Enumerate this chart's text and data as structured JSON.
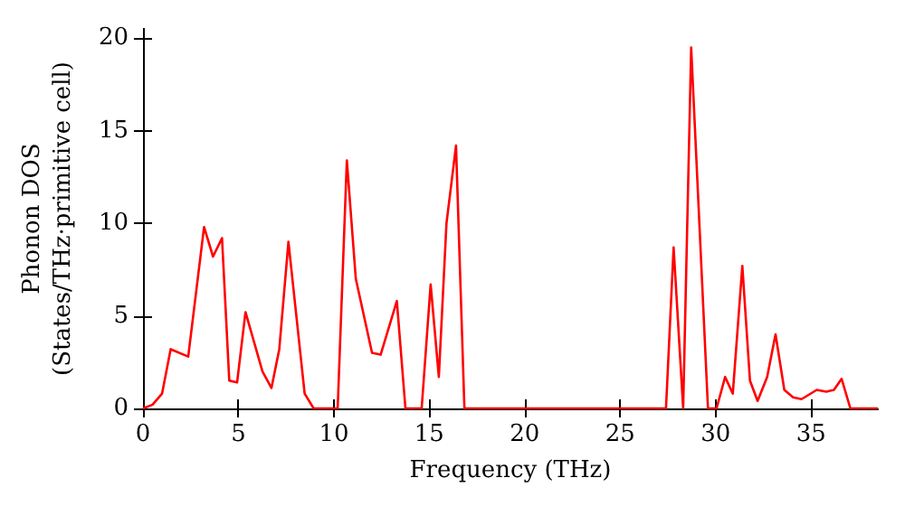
{
  "chart_data": {
    "type": "line",
    "xlabel": "Frequency (THz)",
    "ylabel": "Phonon DOS\n(States/THz·primitive cell)",
    "xlim": [
      0,
      38.5
    ],
    "xticks": [
      0,
      5,
      10,
      15,
      20,
      25,
      30,
      35
    ],
    "ylim": [
      0,
      20.5
    ],
    "yticks": [
      0,
      5,
      10,
      15,
      20
    ],
    "grid": false,
    "marker": "none",
    "series": [
      {
        "color": "#ff0000",
        "x": [
          0,
          0.5,
          1.0,
          1.45,
          2.37,
          3.2,
          3.67,
          4.14,
          4.52,
          4.93,
          5.37,
          6.26,
          6.73,
          7.14,
          7.62,
          8.47,
          8.94,
          10.2,
          10.68,
          11.15,
          12.0,
          12.45,
          13.3,
          13.75,
          14.6,
          15.07,
          15.5,
          15.9,
          16.4,
          16.84,
          27.4,
          27.8,
          28.3,
          28.72,
          29.6,
          30.05,
          30.5,
          30.9,
          31.4,
          31.8,
          32.2,
          32.7,
          33.14,
          33.6,
          34.06,
          34.5,
          35.3,
          35.8,
          36.2,
          36.6,
          37.06,
          38.5
        ],
        "values": [
          0,
          0.2,
          0.8,
          3.2,
          2.8,
          9.8,
          8.2,
          9.2,
          1.5,
          1.4,
          5.2,
          2.0,
          1.1,
          3.2,
          9.0,
          0.8,
          0,
          0,
          13.4,
          7.0,
          3.0,
          2.9,
          5.8,
          0,
          0,
          6.7,
          1.7,
          10.0,
          14.2,
          0,
          0,
          8.7,
          0,
          19.5,
          0,
          0,
          1.7,
          0.8,
          7.7,
          1.5,
          0.4,
          1.7,
          4.0,
          1.0,
          0.6,
          0.5,
          1.0,
          0.9,
          1.0,
          1.6,
          0,
          0
        ]
      }
    ]
  }
}
